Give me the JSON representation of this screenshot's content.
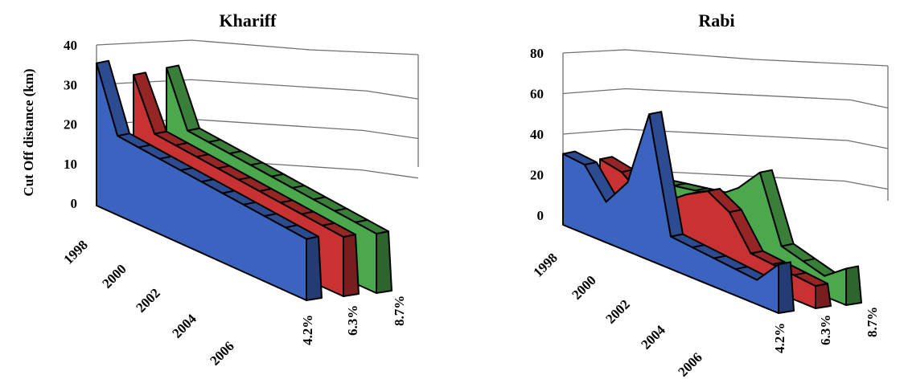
{
  "chart_data": [
    {
      "type": "area",
      "style": "3d",
      "title": "Khariff",
      "ylabel": "Cut Off distance (km)",
      "ylim": [
        0,
        40
      ],
      "yticks": [
        0,
        10,
        20,
        30,
        40
      ],
      "categories": [
        "1998",
        "2000",
        "2002",
        "2004",
        "2006"
      ],
      "x": [
        1998,
        1999,
        2000,
        2001,
        2002,
        2003,
        2004,
        2005,
        2006,
        2007,
        2008
      ],
      "series": [
        {
          "name": "4.2%",
          "color": "#3a64c0",
          "values": [
            36,
            20,
            19.5,
            19,
            18.5,
            18,
            17.5,
            17,
            16.5,
            16,
            15.5
          ]
        },
        {
          "name": "6.3%",
          "color": "#c83232",
          "values": [
            32,
            19.5,
            19,
            18.5,
            18,
            17.5,
            17,
            16.5,
            16,
            15.5,
            15
          ]
        },
        {
          "name": "8.7%",
          "color": "#4ca84c",
          "values": [
            33,
            19.5,
            19,
            18.5,
            18,
            17.5,
            17,
            16.5,
            16,
            15.5,
            15
          ]
        }
      ],
      "grid": true,
      "legend": "depth axis"
    },
    {
      "type": "area",
      "style": "3d",
      "title": "Rabi",
      "ylabel": "",
      "ylim": [
        0,
        80
      ],
      "yticks": [
        0,
        20,
        40,
        60,
        80
      ],
      "categories": [
        "1998",
        "2000",
        "2002",
        "2004",
        "2006"
      ],
      "x": [
        1998,
        1999,
        2000,
        2001,
        2002,
        2003,
        2004,
        2005,
        2006,
        2007,
        2008
      ],
      "series": [
        {
          "name": "4.2%",
          "color": "#3a64c0",
          "values": [
            35,
            34,
            20,
            34,
            72,
            16,
            15,
            14,
            13,
            12,
            24
          ]
        },
        {
          "name": "6.3%",
          "color": "#c83232",
          "values": [
            30,
            28,
            20,
            22,
            30,
            36,
            30,
            14,
            13,
            12,
            11
          ]
        },
        {
          "name": "8.7%",
          "color": "#4ca84c",
          "values": [
            20,
            22,
            24,
            26,
            28,
            36,
            48,
            16,
            13,
            10,
            18
          ]
        }
      ],
      "grid": true,
      "legend": "depth axis"
    }
  ]
}
